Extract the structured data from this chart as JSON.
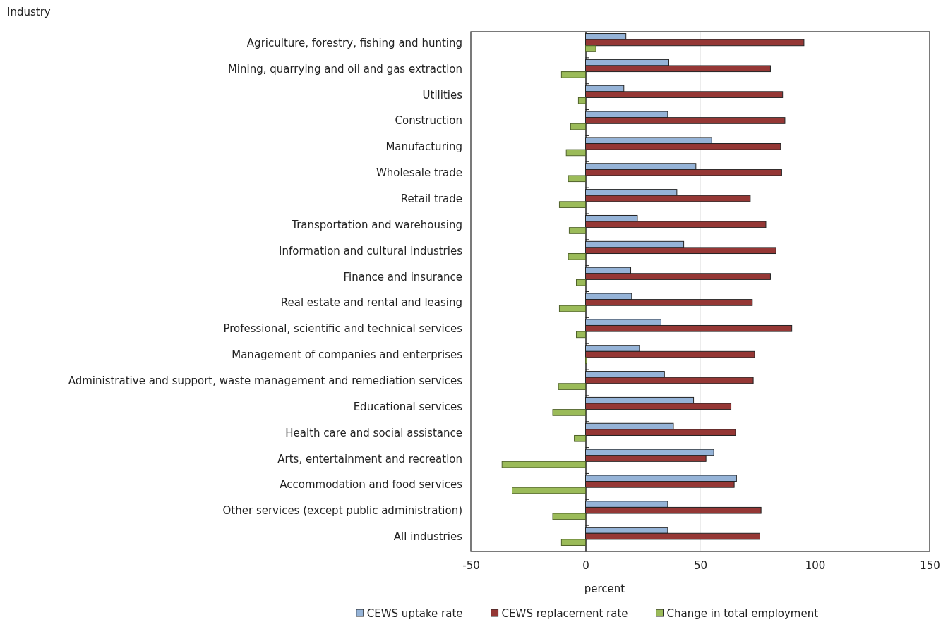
{
  "chart_data": {
    "type": "bar",
    "orientation": "horizontal",
    "ylabel": "Industry",
    "xlabel": "percent",
    "categories": [
      "Agriculture, forestry, fishing and hunting",
      "Mining, quarrying and oil and gas extraction",
      "Utilities",
      "Construction",
      "Manufacturing",
      "Wholesale trade",
      "Retail trade",
      "Transportation and warehousing",
      "Information and cultural industries",
      "Finance and insurance",
      "Real estate and rental and leasing",
      "Professional, scientific and technical services",
      "Management of companies and enterprises",
      "Administrative and support, waste management and remediation services",
      "Educational services",
      "Health care and social assistance",
      "Arts, entertainment and recreation",
      "Accommodation and food services",
      "Other services (except public administration)",
      "All industries"
    ],
    "series": [
      {
        "name": "CEWS uptake rate",
        "color": "#95b3d7",
        "values": [
          17.6,
          36.3,
          16.7,
          35.8,
          55.0,
          48.1,
          39.8,
          22.6,
          42.8,
          19.7,
          20.1,
          32.9,
          23.5,
          34.4,
          47.1,
          38.3,
          55.9,
          65.8,
          35.8,
          35.8
        ]
      },
      {
        "name": "CEWS replacement rate",
        "color": "#953735",
        "values": [
          95.2,
          80.6,
          85.9,
          86.9,
          85.0,
          85.5,
          71.8,
          78.6,
          83.0,
          80.6,
          72.7,
          89.9,
          73.7,
          73.1,
          63.4,
          65.4,
          52.5,
          64.8,
          76.5,
          76.0
        ]
      },
      {
        "name": "Change in total employment",
        "color": "#9bbb59",
        "values": [
          4.5,
          -10.5,
          -3.1,
          -6.5,
          -8.4,
          -7.5,
          -11.4,
          -7.1,
          -7.5,
          -4.0,
          -11.4,
          -4.0,
          0.5,
          -11.8,
          -14.3,
          -4.9,
          -36.4,
          -32.0,
          -14.3,
          -10.5
        ]
      }
    ],
    "xlim": [
      -50,
      150
    ],
    "xticks": [
      -50,
      0,
      50,
      100,
      150
    ],
    "grid": "x",
    "legend": "bottom"
  }
}
